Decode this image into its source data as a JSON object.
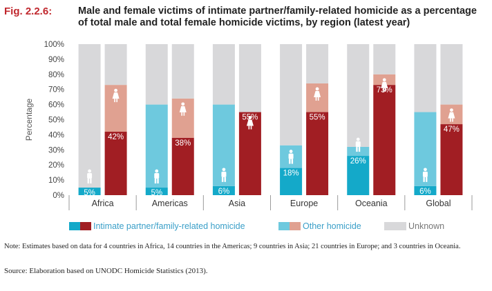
{
  "figure": {
    "label": "Fig. 2.2.6:",
    "title": "Male and female victims of intimate partner/family-related homicide as a percentage of total male and total female homicide victims, by region (latest year)"
  },
  "colors": {
    "intimate_male": "#14a9c9",
    "intimate_female": "#a11e23",
    "other_male": "#6ec9de",
    "other_female": "#e0a191",
    "unknown": "#d8d8da",
    "global_label": "#a11e23"
  },
  "icons": [
    "male-figure-icon",
    "female-figure-icon"
  ],
  "chart_data": {
    "type": "bar",
    "stacked": true,
    "ylabel": "Percentage",
    "ylim": [
      0,
      100
    ],
    "yticks": [
      "0%",
      "10%",
      "20%",
      "30%",
      "40%",
      "50%",
      "60%",
      "70%",
      "80%",
      "90%",
      "100%"
    ],
    "categories": [
      "Africa",
      "Americas",
      "Asia",
      "Europe",
      "Oceania",
      "Global"
    ],
    "legend": [
      "Intimate partner/family-related homicide",
      "Other homicide",
      "Unknown"
    ],
    "legend_position": "bottom",
    "male": {
      "intimate": [
        5,
        5,
        6,
        18,
        26,
        6
      ],
      "other": [
        0,
        55,
        54,
        15,
        6,
        49
      ],
      "unknown": [
        95,
        40,
        40,
        67,
        68,
        45
      ],
      "labels": [
        "5%",
        "5%",
        "6%",
        "18%",
        "26%",
        "6%"
      ]
    },
    "female": {
      "intimate": [
        42,
        38,
        55,
        55,
        73,
        47
      ],
      "other": [
        31,
        26,
        0,
        19,
        7,
        13
      ],
      "unknown": [
        27,
        36,
        45,
        26,
        20,
        40
      ],
      "labels": [
        "42%",
        "38%",
        "55%",
        "55%",
        "73%",
        "47%"
      ]
    }
  },
  "note": "Note: Estimates based on data for 4 countries in Africa, 14 countries in the Americas; 9 countries in Asia; 21 countries in Europe; and 3 countries in Oceania.",
  "source": "Source: Elaboration based on UNODC Homicide Statistics (2013)."
}
